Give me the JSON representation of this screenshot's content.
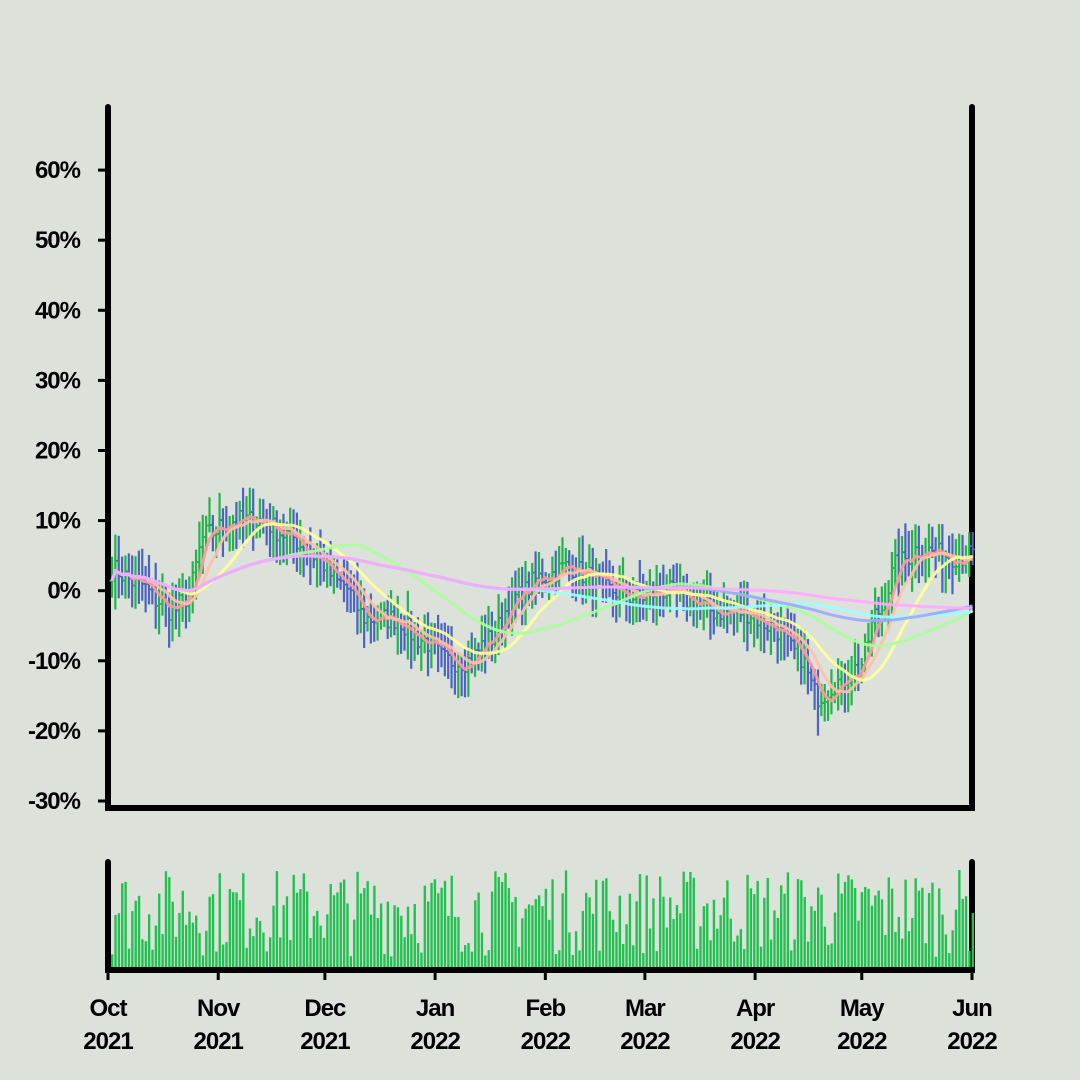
{
  "chart_data": {
    "type": "ohlc",
    "price_panel": {
      "y_axis": {
        "min": -31,
        "max": 69,
        "ticks": [
          {
            "value": 60,
            "label": "60%"
          },
          {
            "value": 50,
            "label": "50%"
          },
          {
            "value": 40,
            "label": "40%"
          },
          {
            "value": 30,
            "label": "30%"
          },
          {
            "value": 20,
            "label": "20%"
          },
          {
            "value": 10,
            "label": "10%"
          },
          {
            "value": 0,
            "label": "0%"
          },
          {
            "value": -10,
            "label": "-10%"
          },
          {
            "value": -20,
            "label": "-20%"
          },
          {
            "value": -30,
            "label": "-30%"
          }
        ]
      },
      "up_color": "#22b34b",
      "down_color": "#4a64c0",
      "curve_anchors": [
        [
          0,
          3
        ],
        [
          8,
          1
        ],
        [
          14,
          -1.5
        ],
        [
          18,
          -3
        ],
        [
          22,
          -1
        ],
        [
          28,
          8
        ],
        [
          36,
          10
        ],
        [
          44,
          10
        ],
        [
          52,
          8
        ],
        [
          60,
          5
        ],
        [
          68,
          1
        ],
        [
          76,
          -4
        ],
        [
          84,
          -4
        ],
        [
          92,
          -7
        ],
        [
          100,
          -10
        ],
        [
          106,
          -10
        ],
        [
          112,
          -7
        ],
        [
          120,
          -1
        ],
        [
          128,
          2
        ],
        [
          136,
          3.5
        ],
        [
          142,
          2
        ],
        [
          148,
          0
        ],
        [
          156,
          -1
        ],
        [
          164,
          0
        ],
        [
          172,
          -1.5
        ],
        [
          180,
          -3
        ],
        [
          188,
          -3
        ],
        [
          196,
          -5
        ],
        [
          204,
          -9
        ],
        [
          210,
          -15
        ],
        [
          216,
          -13
        ],
        [
          222,
          -11
        ],
        [
          228,
          -3
        ],
        [
          234,
          4
        ],
        [
          240,
          6
        ],
        [
          248,
          5
        ],
        [
          256,
          5
        ]
      ],
      "moving_averages": [
        {
          "window": 5,
          "color": "#ff9a9a"
        },
        {
          "window": 10,
          "color": "#ffc0a8"
        },
        {
          "window": 20,
          "color": "#ffff9a"
        },
        {
          "window": 50,
          "color": "#aaff9a"
        },
        {
          "window": 100,
          "color": "#9affff"
        },
        {
          "window": 150,
          "color": "#9aaaff"
        },
        {
          "window": 200,
          "color": "#ffaaff"
        }
      ]
    },
    "volume_panel": {
      "color": "#22c050"
    },
    "x_axis": {
      "start": "2021-10-01",
      "end": "2022-06-01",
      "ticks": [
        {
          "date": "2021-10-01",
          "month": "Oct",
          "year": "2021"
        },
        {
          "date": "2021-11-01",
          "month": "Nov",
          "year": "2021"
        },
        {
          "date": "2021-12-01",
          "month": "Dec",
          "year": "2021"
        },
        {
          "date": "2022-01-01",
          "month": "Jan",
          "year": "2022"
        },
        {
          "date": "2022-02-01",
          "month": "Feb",
          "year": "2022"
        },
        {
          "date": "2022-03-01",
          "month": "Mar",
          "year": "2022"
        },
        {
          "date": "2022-04-01",
          "month": "Apr",
          "year": "2022"
        },
        {
          "date": "2022-05-01",
          "month": "May",
          "year": "2022"
        },
        {
          "date": "2022-06-01",
          "month": "Jun",
          "year": "2022"
        }
      ]
    }
  }
}
